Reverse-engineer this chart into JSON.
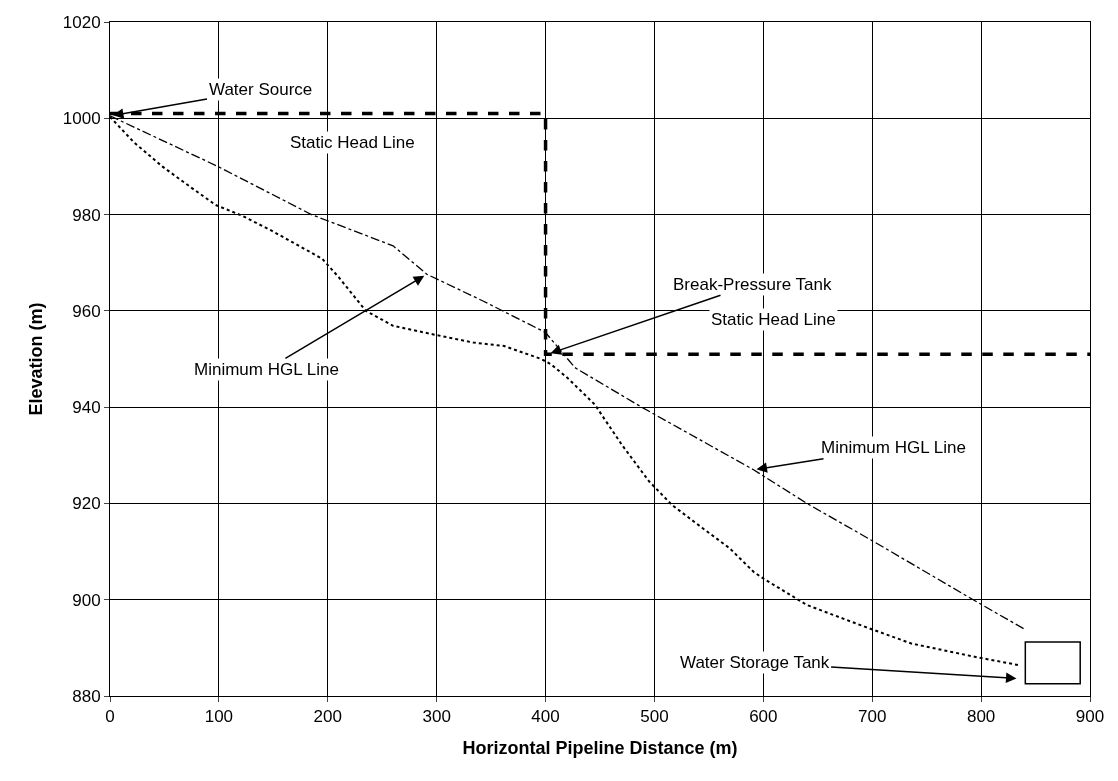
{
  "chart_data": {
    "type": "line",
    "xlabel": "Horizontal Pipeline Distance (m)",
    "ylabel": "Elevation (m)",
    "series": [
      {
        "color": "#000000",
        "line_style": "dashed",
        "x": [
          0,
          400,
          400,
          900
        ],
        "values": [
          1001,
          1001,
          951,
          951
        ]
      },
      {
        "color": "#000000",
        "line_style": "dashdot",
        "x": [
          0,
          99,
          185,
          260,
          291,
          343,
          400,
          427,
          489,
          591,
          640,
          702,
          801,
          839
        ],
        "values": [
          1000.5,
          990,
          980,
          973.5,
          967.6,
          962,
          955.5,
          948.2,
          939.9,
          927,
          920,
          912,
          898.9,
          894
        ]
      },
      {
        "color": "#000000",
        "line_style": "dotted",
        "x": [
          0,
          22,
          48,
          74,
          97,
          121,
          148,
          176,
          195,
          210,
          235,
          260,
          297,
          334,
          362,
          396,
          405,
          420,
          445,
          470,
          495,
          516,
          544,
          569,
          591,
          600,
          640,
          693,
          736,
          795,
          835
        ],
        "values": [
          1000.3,
          995,
          990,
          985.7,
          982,
          979.8,
          976.7,
          973.2,
          970.8,
          967,
          960,
          956.9,
          955.1,
          953.4,
          952.7,
          950,
          948.9,
          946.1,
          940.6,
          932.2,
          924.6,
          919.7,
          914.9,
          910.7,
          905.8,
          904.4,
          898.9,
          894.4,
          890.9,
          888.1,
          886.4
        ]
      }
    ],
    "annotations": [
      {
        "text": "Water Source",
        "x": 0,
        "y": 1000.5
      },
      "Static Head Line",
      {
        "text": "Break-Pressure Tank",
        "x": 402,
        "y": 951
      },
      "Static Head Line",
      {
        "text": "Minimum HGL Line",
        "x": 291,
        "y": 967.6
      },
      {
        "text": "Minimum HGL Line",
        "x": 591,
        "y": 927
      },
      "Water Storage Tank"
    ],
    "xlim": [
      0,
      900
    ],
    "xticks": [
      0,
      100,
      200,
      300,
      400,
      500,
      600,
      700,
      800,
      900
    ],
    "ylim": [
      880,
      1020
    ],
    "yticks": [
      880,
      900,
      920,
      940,
      960,
      980,
      1000,
      1020
    ],
    "grid": true
  }
}
